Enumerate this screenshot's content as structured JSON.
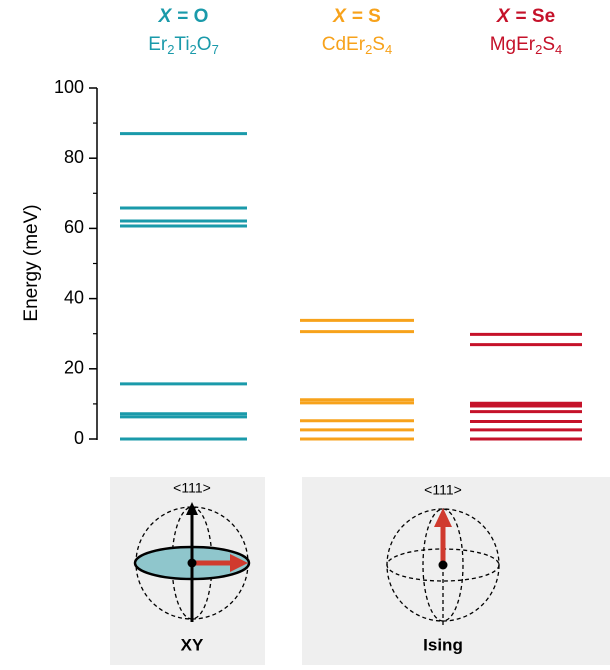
{
  "chart_data": {
    "type": "levels",
    "ylabel": "Energy (meV)",
    "ylim": [
      0,
      100
    ],
    "yticks": [
      0,
      20,
      40,
      60,
      80,
      100
    ],
    "yminorticks": [
      10,
      30,
      50,
      70,
      90
    ],
    "series": [
      {
        "symbol": "X",
        "rest": "= O",
        "color": "#1a9aaa",
        "formula": [
          {
            "t": "Er"
          },
          {
            "t": "2",
            "sub": true
          },
          {
            "t": "Ti"
          },
          {
            "t": "2",
            "sub": true
          },
          {
            "t": "O"
          },
          {
            "t": "7",
            "sub": true
          }
        ],
        "values": [
          0,
          6.3,
          7.2,
          15.7,
          60.7,
          62.1,
          65.8,
          87.0
        ]
      },
      {
        "symbol": "X",
        "rest": "= S",
        "color": "#f7a21b",
        "formula": [
          {
            "t": "CdEr"
          },
          {
            "t": "2",
            "sub": true
          },
          {
            "t": "S"
          },
          {
            "t": "4",
            "sub": true
          }
        ],
        "values": [
          0,
          2.6,
          5.2,
          10.3,
          11.2,
          30.6,
          33.8
        ]
      },
      {
        "symbol": "X",
        "rest": "= Se",
        "color": "#c5122a",
        "formula": [
          {
            "t": "MgEr"
          },
          {
            "t": "2",
            "sub": true
          },
          {
            "t": "S"
          },
          {
            "t": "4",
            "sub": true
          }
        ],
        "values": [
          0,
          2.6,
          5.0,
          7.8,
          9.4,
          10.2,
          26.9,
          29.8
        ]
      }
    ],
    "panels": [
      {
        "axis": "<111>",
        "label": "XY"
      },
      {
        "axis": "<111>",
        "label": "Ising"
      }
    ]
  }
}
